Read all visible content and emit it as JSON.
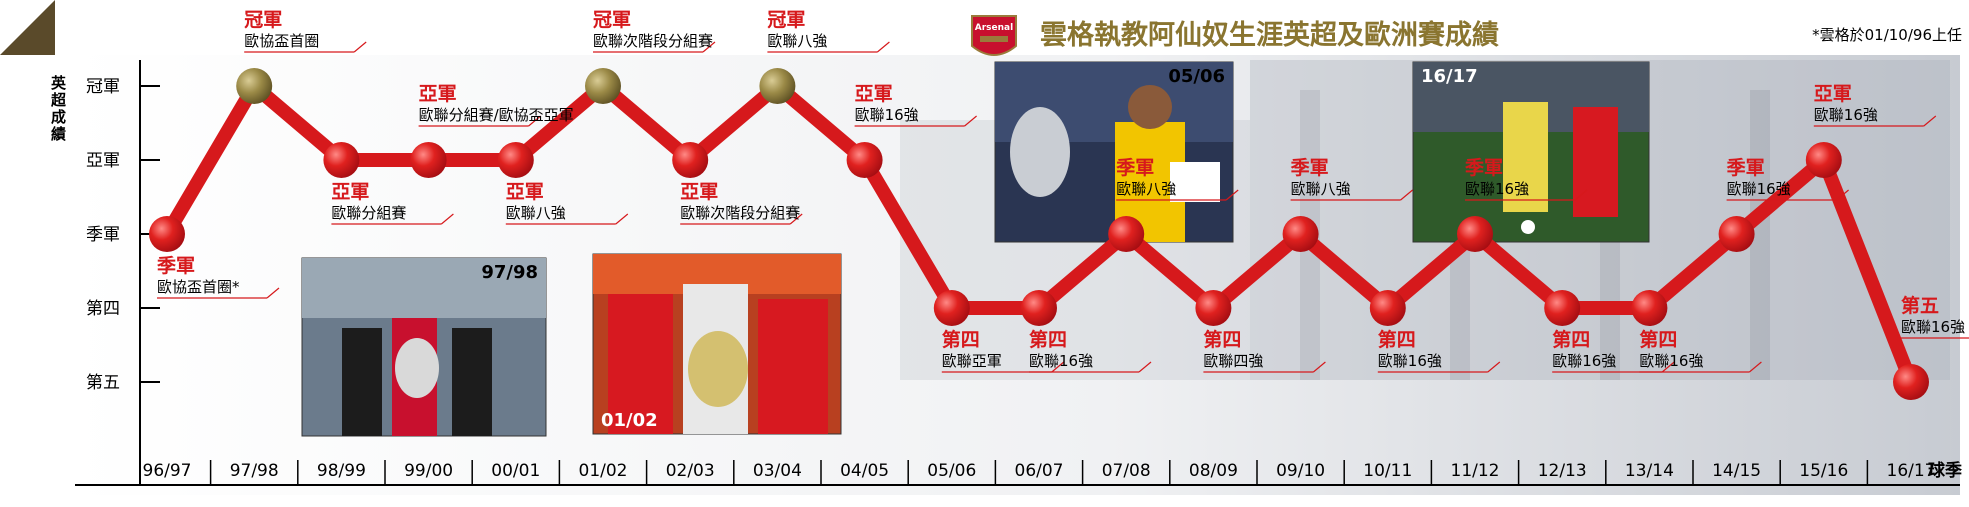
{
  "header": {
    "title": "雲格執教阿仙奴生涯英超及歐洲賽成績",
    "note": "*雲格於01/10/96上任",
    "crest_text": "Arsenal"
  },
  "chart_data": {
    "type": "line",
    "ylabel": "英超成績",
    "xlabel": "球季",
    "y_categories": [
      "冠軍",
      "亞軍",
      "季軍",
      "第四",
      "第五"
    ],
    "categories": [
      "96/97",
      "97/98",
      "98/99",
      "99/00",
      "00/01",
      "01/02",
      "02/03",
      "03/04",
      "04/05",
      "05/06",
      "06/07",
      "07/08",
      "08/09",
      "09/10",
      "10/11",
      "11/12",
      "12/13",
      "13/14",
      "14/15",
      "15/16",
      "16/17"
    ],
    "series": [
      {
        "values": [
          3,
          1,
          2,
          2,
          2,
          1,
          2,
          1,
          2,
          4,
          4,
          3,
          4,
          3,
          4,
          3,
          4,
          4,
          3,
          2,
          5
        ]
      }
    ],
    "annotations": [
      {
        "season": "96/97",
        "position": "季軍",
        "europe": "歐協盃首圈*"
      },
      {
        "season": "97/98",
        "position": "冠軍",
        "europe": "歐協盃首圈"
      },
      {
        "season": "98/99",
        "position": "亞軍",
        "europe": "歐聯分組賽"
      },
      {
        "season": "99/00",
        "position": "亞軍",
        "europe": "歐聯分組賽/歐協盃亞軍"
      },
      {
        "season": "00/01",
        "position": "亞軍",
        "europe": "歐聯八強"
      },
      {
        "season": "01/02",
        "position": "冠軍",
        "europe": "歐聯次階段分組賽"
      },
      {
        "season": "02/03",
        "position": "亞軍",
        "europe": "歐聯次階段分組賽"
      },
      {
        "season": "03/04",
        "position": "冠軍",
        "europe": "歐聯八強"
      },
      {
        "season": "04/05",
        "position": "亞軍",
        "europe": "歐聯16強"
      },
      {
        "season": "05/06",
        "position": "第四",
        "europe": "歐聯亞軍"
      },
      {
        "season": "06/07",
        "position": "第四",
        "europe": "歐聯16強"
      },
      {
        "season": "07/08",
        "position": "季軍",
        "europe": "歐聯八強"
      },
      {
        "season": "08/09",
        "position": "第四",
        "europe": "歐聯四強"
      },
      {
        "season": "09/10",
        "position": "季軍",
        "europe": "歐聯八強"
      },
      {
        "season": "10/11",
        "position": "第四",
        "europe": "歐聯16強"
      },
      {
        "season": "11/12",
        "position": "季軍",
        "europe": "歐聯16強"
      },
      {
        "season": "12/13",
        "position": "第四",
        "europe": "歐聯16強"
      },
      {
        "season": "13/14",
        "position": "第四",
        "europe": "歐聯16強"
      },
      {
        "season": "14/15",
        "position": "季軍",
        "europe": "歐聯16強"
      },
      {
        "season": "15/16",
        "position": "亞軍",
        "europe": "歐聯16強"
      },
      {
        "season": "16/17",
        "position": "第五",
        "europe": "歐聯16強"
      }
    ],
    "colors": {
      "line": "#d6191c",
      "marker": "#c4121a",
      "champion_marker": "#8a7a3e",
      "label": "#d6191c"
    }
  },
  "photos": [
    {
      "caption": "97/98"
    },
    {
      "caption": "01/02"
    },
    {
      "caption": "05/06"
    },
    {
      "caption": "16/17"
    }
  ]
}
